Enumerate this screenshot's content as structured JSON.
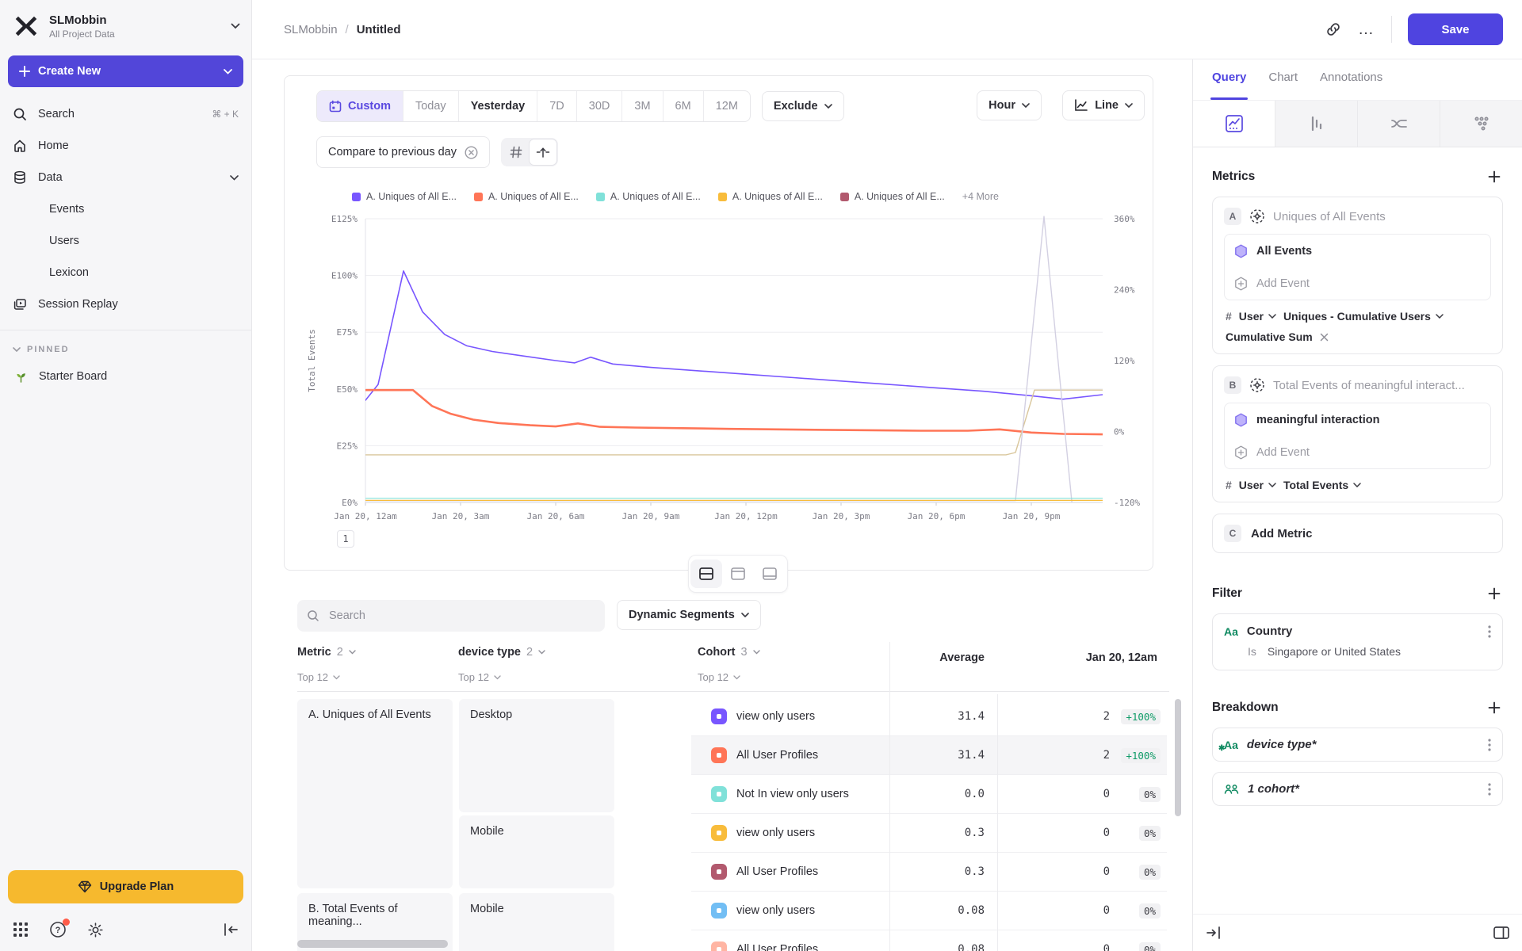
{
  "colors": {
    "accent": "#4f44e0",
    "amber": "#f6b92e",
    "green": "#0f8a61",
    "delta_green": "#0f9b67"
  },
  "sidebar": {
    "workspace_name": "SLMobbin",
    "workspace_subtitle": "All Project Data",
    "create_new": "Create New",
    "search": "Search",
    "search_shortcut": "⌘ + K",
    "home": "Home",
    "data": "Data",
    "data_children": [
      "Events",
      "Users",
      "Lexicon"
    ],
    "session_replay": "Session Replay",
    "pinned_label": "PINNED",
    "starter_board": "Starter Board",
    "upgrade": "Upgrade Plan"
  },
  "topbar": {
    "breadcrumb_project": "SLMobbin",
    "breadcrumb_sep": "/",
    "breadcrumb_page": "Untitled",
    "more": "…",
    "save": "Save"
  },
  "controls": {
    "ranges": [
      "Custom",
      "Today",
      "Yesterday",
      "7D",
      "30D",
      "3M",
      "6M",
      "12M"
    ],
    "exclude": "Exclude",
    "granularity": "Hour",
    "chart_type": "Line",
    "compare": "Compare to previous day"
  },
  "legend": {
    "items": [
      {
        "label": "A. Uniques of All E...",
        "color": "#7856FF"
      },
      {
        "label": "A. Uniques of All E...",
        "color": "#FF7557"
      },
      {
        "label": "A. Uniques of All E...",
        "color": "#80E1D9"
      },
      {
        "label": "A. Uniques of All E...",
        "color": "#F8BC3B"
      },
      {
        "label": "A. Uniques of All E...",
        "color": "#B2596E"
      }
    ],
    "more": "+4 More"
  },
  "chart_data": {
    "type": "line",
    "ylabel": "Total Events",
    "left_axis": {
      "max": 125,
      "ticks": [
        {
          "label": "E125%",
          "value": 125
        },
        {
          "label": "E100%",
          "value": 100
        },
        {
          "label": "E75%",
          "value": 75
        },
        {
          "label": "E50%",
          "value": 50
        },
        {
          "label": "E25%",
          "value": 25
        },
        {
          "label": "E0%",
          "value": 0
        }
      ]
    },
    "right_axis": {
      "min": -120,
      "max": 360,
      "ticks": [
        {
          "label": "360%",
          "value": 360
        },
        {
          "label": "240%",
          "value": 240
        },
        {
          "label": "120%",
          "value": 120
        },
        {
          "label": "0%",
          "value": 0
        },
        {
          "label": "-120%",
          "value": -120
        }
      ]
    },
    "x_axis": {
      "hours_max": 23.25,
      "ticks": [
        {
          "label": "Jan 20, 12am",
          "hour": 0
        },
        {
          "label": "Jan 20, 3am",
          "hour": 3
        },
        {
          "label": "Jan 20, 6am",
          "hour": 6
        },
        {
          "label": "Jan 20, 9am",
          "hour": 9
        },
        {
          "label": "Jan 20, 12pm",
          "hour": 12
        },
        {
          "label": "Jan 20, 3pm",
          "hour": 15
        },
        {
          "label": "Jan 20, 6pm",
          "hour": 18
        },
        {
          "label": "Jan 20, 9pm",
          "hour": 21
        }
      ]
    },
    "series": [
      {
        "name": "A. Uniques of All E... (purple)",
        "color": "#7856FF",
        "width": 1.6,
        "points": [
          [
            0,
            45
          ],
          [
            0.4,
            52
          ],
          [
            1.2,
            102
          ],
          [
            1.8,
            84
          ],
          [
            2.5,
            74
          ],
          [
            3.2,
            69
          ],
          [
            4,
            66.5
          ],
          [
            5,
            64.5
          ],
          [
            6,
            62.5
          ],
          [
            6.6,
            61.5
          ],
          [
            7.1,
            64
          ],
          [
            7.8,
            61
          ],
          [
            9,
            59.5
          ],
          [
            10.5,
            58
          ],
          [
            12,
            56.5
          ],
          [
            13.5,
            55
          ],
          [
            15,
            53.5
          ],
          [
            16.5,
            52
          ],
          [
            18,
            50.5
          ],
          [
            19.5,
            49
          ],
          [
            21,
            47
          ],
          [
            22,
            45.5
          ],
          [
            23.25,
            47.5
          ]
        ]
      },
      {
        "name": "A. Uniques of All E... (coral)",
        "color": "#FF7557",
        "width": 2.6,
        "points": [
          [
            0,
            49.5
          ],
          [
            1.5,
            49.5
          ],
          [
            2.1,
            42.5
          ],
          [
            2.7,
            39
          ],
          [
            3.4,
            36.5
          ],
          [
            4.2,
            35
          ],
          [
            5.2,
            34
          ],
          [
            6,
            33.5
          ],
          [
            6.7,
            34.8
          ],
          [
            7.4,
            33.3
          ],
          [
            8.5,
            33
          ],
          [
            10,
            32.7
          ],
          [
            11.5,
            32.4
          ],
          [
            13,
            32.2
          ],
          [
            14.5,
            32
          ],
          [
            16,
            31.8
          ],
          [
            17.5,
            31.6
          ],
          [
            19,
            31.6
          ],
          [
            20,
            32.2
          ],
          [
            21,
            30.8
          ],
          [
            22,
            30.2
          ],
          [
            23.25,
            30
          ]
        ]
      },
      {
        "name": "baseline (tan)",
        "color": "#D9C69B",
        "width": 1.4,
        "points": [
          [
            0,
            21
          ],
          [
            20.2,
            21
          ],
          [
            20.5,
            22
          ],
          [
            21.1,
            49.5
          ],
          [
            23.25,
            49.5
          ]
        ]
      },
      {
        "name": "comparison spike (gray)",
        "color": "#D3D0E2",
        "width": 1.4,
        "points": [
          [
            0,
            0.8
          ],
          [
            20.5,
            0.8
          ],
          [
            21.4,
            126
          ],
          [
            22.3,
            -3
          ],
          [
            23.25,
            -3
          ]
        ]
      },
      {
        "name": "A. Uniques of All E... (teal)",
        "color": "#80E1D9",
        "width": 1.2,
        "points": [
          [
            0,
            1.8
          ],
          [
            23.25,
            1.8
          ]
        ]
      },
      {
        "name": "A. Uniques of All E... (amber)",
        "color": "#F8BC3B",
        "width": 1.2,
        "points": [
          [
            0,
            0.9
          ],
          [
            23.25,
            0.9
          ]
        ]
      }
    ],
    "pagination": "1"
  },
  "table": {
    "search_placeholder": "Search",
    "segments_button": "Dynamic Segments",
    "headers": {
      "metric": "Metric",
      "metric_count": "2",
      "device": "device type",
      "device_count": "2",
      "cohort": "Cohort",
      "cohort_count": "3",
      "top": "Top 12",
      "average": "Average",
      "date_col": "Jan 20, 12am"
    },
    "metric_groups": [
      {
        "label": "A. Uniques of All Events"
      },
      {
        "label": "B. Total Events of meaning..."
      }
    ],
    "device_groups": [
      {
        "label": "Desktop"
      },
      {
        "label": "Mobile"
      },
      {
        "label": "Mobile"
      }
    ],
    "rows": [
      {
        "color": "#7856FF",
        "label": "view only users",
        "avg": "31.4",
        "value": "2",
        "delta": "+100%",
        "positive": true
      },
      {
        "color": "#FF7557",
        "label": "All User Profiles",
        "avg": "31.4",
        "value": "2",
        "delta": "+100%",
        "positive": true,
        "highlight": true
      },
      {
        "color": "#80E1D9",
        "label": "Not In view only users",
        "avg": "0.0",
        "value": "0",
        "delta": "0%"
      },
      {
        "color": "#F8BC3B",
        "label": "view only users",
        "avg": "0.3",
        "value": "0",
        "delta": "0%"
      },
      {
        "color": "#B2596E",
        "label": "All User Profiles",
        "avg": "0.3",
        "value": "0",
        "delta": "0%"
      },
      {
        "color": "#72BEF4",
        "label": "view only users",
        "avg": "0.08",
        "value": "0",
        "delta": "0%"
      },
      {
        "color": "#FFB5A3",
        "label": "All User Profiles",
        "avg": "0.08",
        "value": "0",
        "delta": "0%"
      }
    ]
  },
  "query_panel": {
    "tabs": [
      "Query",
      "Chart",
      "Annotations"
    ],
    "metrics_title": "Metrics",
    "metric_a": {
      "id": "A",
      "title": "Uniques of All Events",
      "event": "All Events",
      "add_event": "Add Event",
      "hash": "#",
      "entity": "User",
      "measure": "Uniques - Cumulative Users",
      "transform": "Cumulative Sum"
    },
    "metric_b": {
      "id": "B",
      "title": "Total Events of meaningful interact...",
      "event": "meaningful interaction",
      "add_event": "Add Event",
      "hash": "#",
      "entity": "User",
      "measure": "Total Events"
    },
    "metric_c": {
      "id": "C",
      "label": "Add Metric"
    },
    "filter_title": "Filter",
    "filter_item": {
      "icon": "Aa",
      "name": "Country",
      "operator": "Is",
      "value": "Singapore or United States"
    },
    "breakdown_title": "Breakdown",
    "breakdown_items": [
      {
        "icon": "Aa",
        "name": "device type*"
      },
      {
        "icon": "cohort",
        "name": "1 cohort*"
      }
    ]
  }
}
